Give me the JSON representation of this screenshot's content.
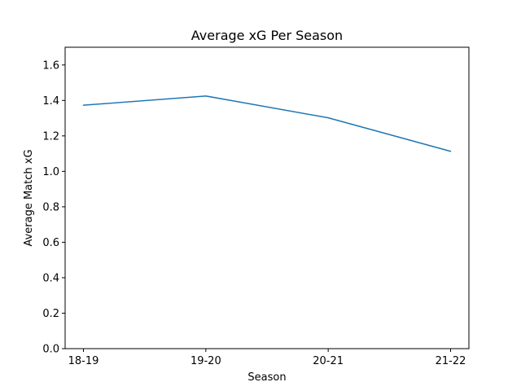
{
  "chart_data": {
    "type": "line",
    "title": "Average xG Per Season",
    "xlabel": "Season",
    "ylabel": "Average Match xG",
    "categories": [
      "18-19",
      "19-20",
      "20-21",
      "21-22"
    ],
    "series": [
      {
        "values": [
          1.373,
          1.425,
          1.302,
          1.113
        ],
        "color": "#1f77b4"
      }
    ],
    "ylim": [
      0,
      1.7
    ],
    "yticks": [
      0.0,
      0.2,
      0.4,
      0.6,
      0.8,
      1.0,
      1.2,
      1.4,
      1.6
    ],
    "grid": false,
    "legend": "none"
  }
}
